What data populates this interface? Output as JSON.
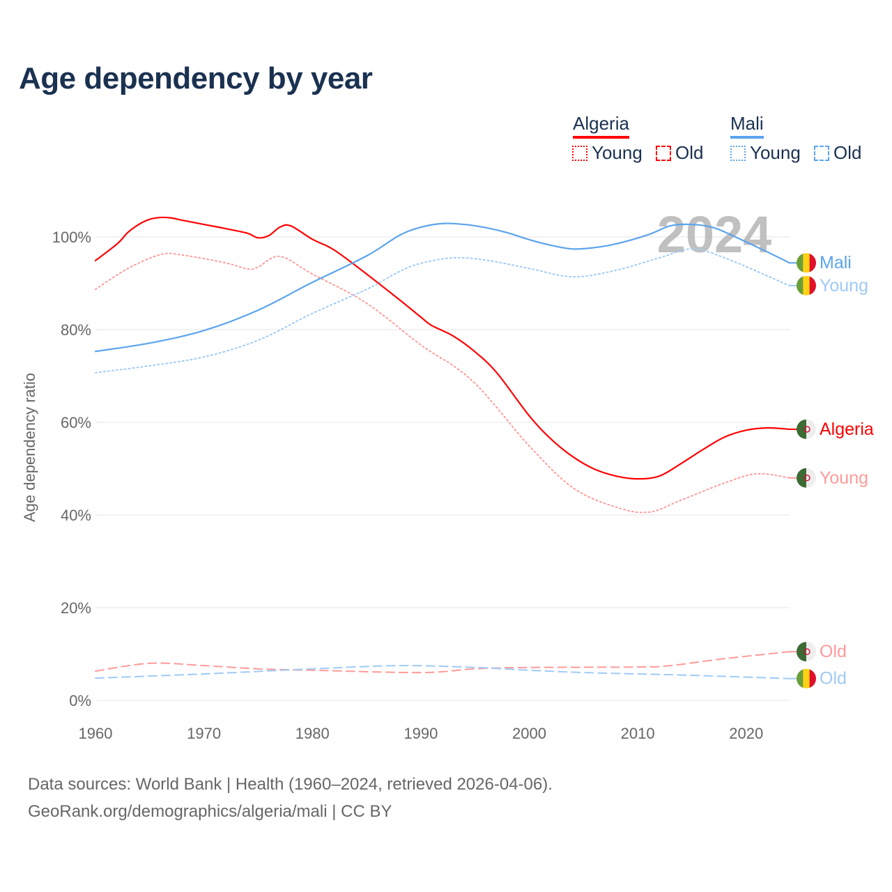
{
  "chart_data": {
    "type": "line",
    "title": "Age dependency by year",
    "ylabel": "Age dependency ratio",
    "xlabel": "",
    "xlim": [
      1960,
      2024
    ],
    "ylim": [
      0,
      110
    ],
    "x_ticks": [
      "1960",
      "1970",
      "1980",
      "1990",
      "2000",
      "2010",
      "2020"
    ],
    "y_ticks": [
      "0%",
      "20%",
      "40%",
      "60%",
      "80%",
      "100%"
    ],
    "grid": true,
    "year_watermark": "2024",
    "legend": {
      "placement": "top-right",
      "groups": [
        {
          "country": "Algeria",
          "color": "#ff0000",
          "items": [
            "Young",
            "Old"
          ]
        },
        {
          "country": "Mali",
          "color": "#5ba4ec",
          "items": [
            "Young",
            "Old"
          ]
        }
      ]
    },
    "series": [
      {
        "name": "Algeria",
        "label": "Algeria",
        "kind": "total",
        "color": "#ff0000",
        "flag": "algeria",
        "points": [
          [
            1960,
            94.9
          ],
          [
            1962,
            98.5
          ],
          [
            1963,
            101
          ],
          [
            1964,
            102.7
          ],
          [
            1965,
            103.8
          ],
          [
            1966,
            104.2
          ],
          [
            1967,
            104.1
          ],
          [
            1968,
            103.6
          ],
          [
            1970,
            102.7
          ],
          [
            1972,
            101.8
          ],
          [
            1974,
            100.8
          ],
          [
            1975,
            99.8
          ],
          [
            1976,
            100.3
          ],
          [
            1977,
            102.1
          ],
          [
            1978,
            102.4
          ],
          [
            1980,
            99.5
          ],
          [
            1982,
            97.2
          ],
          [
            1985,
            92
          ],
          [
            1988,
            86.5
          ],
          [
            1990,
            82.7
          ],
          [
            1991,
            80.9
          ],
          [
            1993,
            78.6
          ],
          [
            1995,
            75.2
          ],
          [
            1997,
            70.7
          ],
          [
            2000,
            61.4
          ],
          [
            2002,
            56.4
          ],
          [
            2004,
            52.6
          ],
          [
            2006,
            49.9
          ],
          [
            2008,
            48.4
          ],
          [
            2010,
            47.8
          ],
          [
            2012,
            48.4
          ],
          [
            2014,
            51.1
          ],
          [
            2016,
            54.1
          ],
          [
            2018,
            56.8
          ],
          [
            2020,
            58.3
          ],
          [
            2022,
            58.8
          ],
          [
            2024,
            58.5
          ]
        ]
      },
      {
        "name": "Algeria Young",
        "label": "Young",
        "kind": "young",
        "color": "#ff9a9a",
        "flag": "algeria",
        "points": [
          [
            1960,
            88.7
          ],
          [
            1963,
            93.2
          ],
          [
            1966,
            96.2
          ],
          [
            1968,
            96.1
          ],
          [
            1972,
            94.4
          ],
          [
            1974,
            93.1
          ],
          [
            1975,
            93.5
          ],
          [
            1977,
            95.8
          ],
          [
            1980,
            92
          ],
          [
            1985,
            85.7
          ],
          [
            1990,
            76.7
          ],
          [
            1993,
            72.2
          ],
          [
            1995,
            68.4
          ],
          [
            1997,
            63.2
          ],
          [
            2000,
            54.9
          ],
          [
            2004,
            45.9
          ],
          [
            2008,
            41.7
          ],
          [
            2011,
            40.6
          ],
          [
            2014,
            43.2
          ],
          [
            2018,
            46.9
          ],
          [
            2021,
            48.9
          ],
          [
            2024,
            48
          ]
        ]
      },
      {
        "name": "Algeria Old",
        "label": "Old",
        "kind": "old",
        "color": "#ff9a9a",
        "flag": "algeria",
        "points": [
          [
            1960,
            6.3
          ],
          [
            1965,
            8.0
          ],
          [
            1970,
            7.5
          ],
          [
            1975,
            6.8
          ],
          [
            1980,
            6.5
          ],
          [
            1990,
            6.0
          ],
          [
            1995,
            6.8
          ],
          [
            2000,
            7.1
          ],
          [
            2010,
            7.2
          ],
          [
            2013,
            7.5
          ],
          [
            2018,
            9.0
          ],
          [
            2024,
            10.5
          ]
        ]
      },
      {
        "name": "Mali",
        "label": "Mali",
        "kind": "total",
        "color": "#5ba4ec",
        "flag": "mali",
        "points": [
          [
            1960,
            75.3
          ],
          [
            1965,
            77.1
          ],
          [
            1970,
            79.8
          ],
          [
            1975,
            84.2
          ],
          [
            1980,
            90.2
          ],
          [
            1985,
            95.9
          ],
          [
            1988,
            100.3
          ],
          [
            1990,
            102.1
          ],
          [
            1992,
            102.9
          ],
          [
            1994,
            102.7
          ],
          [
            1996,
            102
          ],
          [
            1998,
            100.9
          ],
          [
            2000,
            99.4
          ],
          [
            2002,
            98.2
          ],
          [
            2004,
            97.4
          ],
          [
            2006,
            97.7
          ],
          [
            2008,
            98.5
          ],
          [
            2011,
            100.5
          ],
          [
            2013,
            102.4
          ],
          [
            2015,
            102.7
          ],
          [
            2017,
            102
          ],
          [
            2019,
            100
          ],
          [
            2022,
            96.7
          ],
          [
            2024,
            94.4
          ]
        ]
      },
      {
        "name": "Mali Young",
        "label": "Young",
        "kind": "young",
        "color": "#9fcaf5",
        "flag": "mali",
        "points": [
          [
            1960,
            70.7
          ],
          [
            1965,
            72.2
          ],
          [
            1970,
            74.1
          ],
          [
            1975,
            77.7
          ],
          [
            1980,
            83.5
          ],
          [
            1985,
            88.7
          ],
          [
            1988,
            92.5
          ],
          [
            1990,
            94.3
          ],
          [
            1993,
            95.5
          ],
          [
            1996,
            95
          ],
          [
            2000,
            93.2
          ],
          [
            2004,
            91.4
          ],
          [
            2008,
            92.8
          ],
          [
            2012,
            95.5
          ],
          [
            2015,
            97.4
          ],
          [
            2018,
            95.5
          ],
          [
            2024,
            89.5
          ]
        ]
      },
      {
        "name": "Mali Old",
        "label": "Old",
        "kind": "old",
        "color": "#9fcaf5",
        "flag": "mali",
        "points": [
          [
            1960,
            4.8
          ],
          [
            1970,
            5.7
          ],
          [
            1980,
            6.8
          ],
          [
            1988,
            7.5
          ],
          [
            1995,
            7.1
          ],
          [
            2000,
            6.5
          ],
          [
            2005,
            6.0
          ],
          [
            2010,
            5.7
          ],
          [
            2015,
            5.4
          ],
          [
            2024,
            4.7
          ]
        ]
      }
    ],
    "source": "Data sources: World Bank | Health (1960–2024, retrieved 2026-04-06).",
    "credit": "GeoRank.org/demographics/algeria/mali | CC BY"
  }
}
